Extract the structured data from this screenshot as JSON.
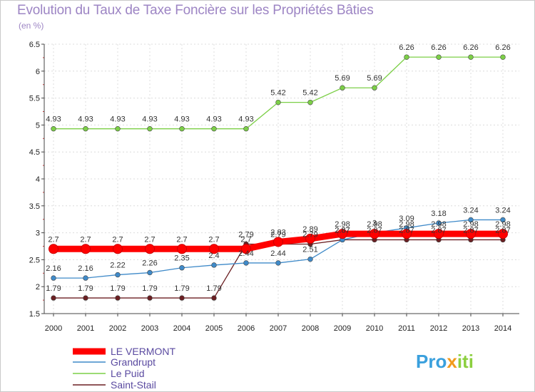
{
  "chart_data": {
    "type": "line",
    "title": "Evolution du Taux de Taxe Foncière sur les Propriétés Bâties",
    "ylabel": "(en %)",
    "xlabel": "",
    "ylim": [
      1.5,
      6.5
    ],
    "yticks": [
      "1.5",
      "2",
      "2.5",
      "3",
      "3.5",
      "4",
      "4.5",
      "5",
      "5.5",
      "6",
      "6.5"
    ],
    "categories": [
      "2000",
      "2001",
      "2002",
      "2003",
      "2004",
      "2005",
      "2006",
      "2007",
      "2008",
      "2009",
      "2010",
      "2011",
      "2012",
      "2013",
      "2014"
    ],
    "series": [
      {
        "name": "LE VERMONT",
        "color": "#ff0000",
        "values": [
          2.7,
          2.7,
          2.7,
          2.7,
          2.7,
          2.7,
          2.7,
          2.83,
          2.89,
          2.98,
          2.98,
          2.98,
          2.98,
          2.98,
          2.98
        ],
        "labels": [
          "2.7",
          "2.7",
          "2.7",
          "2.7",
          "2.7",
          "2.7",
          "2.7",
          "2.83",
          "2.89",
          "2.98",
          "2.98",
          "2.98",
          "2.98",
          "2.98",
          "2.98"
        ]
      },
      {
        "name": "Grandrupt",
        "color": "#3f8ac9",
        "values": [
          2.16,
          2.16,
          2.22,
          2.26,
          2.35,
          2.4,
          2.44,
          2.44,
          2.51,
          2.87,
          3,
          3.09,
          3.18,
          3.24,
          3.24
        ],
        "labels": [
          "2.16",
          "2.16",
          "2.22",
          "2.26",
          "2.35",
          "2.4",
          "2.44",
          "2.44",
          "2.51",
          "2.87",
          "3",
          "3.09",
          "3.18",
          "3.24",
          "3.24"
        ]
      },
      {
        "name": "Le Puid",
        "color": "#7ccf47",
        "values": [
          4.93,
          4.93,
          4.93,
          4.93,
          4.93,
          4.93,
          4.93,
          5.42,
          5.42,
          5.69,
          5.69,
          6.26,
          6.26,
          6.26,
          6.26
        ],
        "labels": [
          "4.93",
          "4.93",
          "4.93",
          "4.93",
          "4.93",
          "4.93",
          "4.93",
          "5.42",
          "5.42",
          "5.69",
          "5.69",
          "6.26",
          "6.26",
          "6.26",
          "6.26"
        ]
      },
      {
        "name": "Saint-Stail",
        "color": "#6b1f22",
        "values": [
          1.79,
          1.79,
          1.79,
          1.79,
          1.79,
          1.79,
          2.79,
          2.79,
          2.79,
          2.87,
          2.87,
          2.87,
          2.87,
          2.87,
          2.87
        ],
        "labels": [
          "1.79",
          "1.79",
          "1.79",
          "1.79",
          "1.79",
          "1.79",
          "2.79",
          "2.79",
          "2.79",
          "2.87",
          "2.87",
          "2.87",
          "2.87",
          "2.87",
          "2.87"
        ]
      }
    ]
  },
  "brand": {
    "part1": "Pro",
    "part2": "x",
    "part3": "iti"
  }
}
